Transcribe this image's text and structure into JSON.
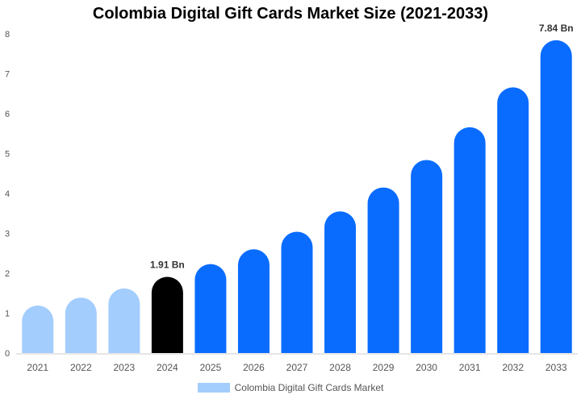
{
  "chart_data": {
    "type": "bar",
    "title": "Colombia Digital Gift Cards Market Size (2021-2033)",
    "xlabel": "",
    "ylabel": "",
    "categories": [
      "2021",
      "2022",
      "2023",
      "2024",
      "2025",
      "2026",
      "2027",
      "2028",
      "2029",
      "2030",
      "2031",
      "2032",
      "2033"
    ],
    "series": [
      {
        "name": "Colombia Digital Gift Cards Market",
        "values": [
          1.19,
          1.39,
          1.62,
          1.91,
          2.23,
          2.6,
          3.04,
          3.55,
          4.15,
          4.84,
          5.66,
          6.66,
          7.84
        ]
      }
    ],
    "data_labels": [
      {
        "category": "2024",
        "text": "1.91 Bn"
      },
      {
        "category": "2033",
        "text": "7.84 Bn"
      }
    ],
    "ylim": [
      0,
      8
    ],
    "yticks": [
      "0",
      "1",
      "2",
      "3",
      "4",
      "5",
      "6",
      "7",
      "8"
    ],
    "grid": false,
    "legend_position": "bottom",
    "colors": {
      "historical": "#a3cdfd",
      "current": "#000000",
      "forecast": "#0a6cff",
      "legend": "#a3cdfd",
      "axis": "#cccccc",
      "tick_text": "#555555"
    }
  }
}
